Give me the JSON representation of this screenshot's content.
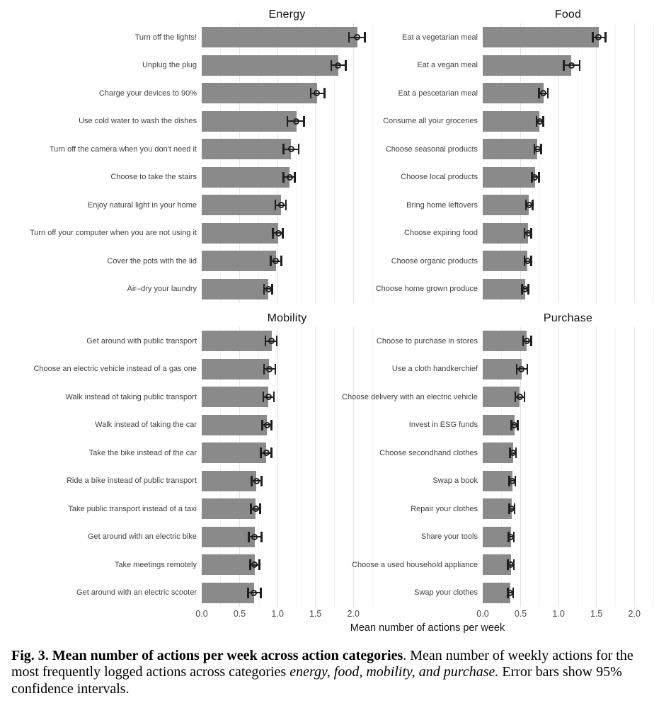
{
  "chart_data": {
    "type": "bar",
    "orientation": "horizontal",
    "facet_layout": "2x2",
    "title": "",
    "xlabel": "Mean number of actions per week",
    "ylabel": "",
    "xlim": [
      0,
      2.25
    ],
    "x_major_ticks": [
      0,
      0.5,
      1.0,
      1.5,
      2.0
    ],
    "x_tick_labels": [
      "0.0",
      "0.5",
      "1.0",
      "1.5",
      "2.0"
    ],
    "x_minor_gridlines": [
      0.25,
      0.75,
      1.25,
      1.75,
      2.25
    ],
    "grid": true,
    "legend": "none",
    "error_bars": "95% confidence intervals",
    "bar_color": "#8a8a8a",
    "errorbar_color": "#1f1f1f",
    "panels": [
      {
        "title": "Energy",
        "items": [
          {
            "label": "Turn off the lights!",
            "mean": 2.05,
            "ci_low": 1.94,
            "ci_high": 2.15
          },
          {
            "label": "Unplug the plug",
            "mean": 1.8,
            "ci_low": 1.71,
            "ci_high": 1.9
          },
          {
            "label": "Charge your devices to 90%",
            "mean": 1.52,
            "ci_low": 1.44,
            "ci_high": 1.62
          },
          {
            "label": "Use cold water to wash the dishes",
            "mean": 1.25,
            "ci_low": 1.13,
            "ci_high": 1.35
          },
          {
            "label": "Turn off the camera when you don't need it",
            "mean": 1.18,
            "ci_low": 1.08,
            "ci_high": 1.28
          },
          {
            "label": "Choose to take the stairs",
            "mean": 1.16,
            "ci_low": 1.08,
            "ci_high": 1.23
          },
          {
            "label": "Enjoy natural light in your home",
            "mean": 1.05,
            "ci_low": 0.97,
            "ci_high": 1.11
          },
          {
            "label": "Turn off your computer when you are not using it",
            "mean": 1.01,
            "ci_low": 0.94,
            "ci_high": 1.07
          },
          {
            "label": "Cover the pots with the lid",
            "mean": 0.98,
            "ci_low": 0.91,
            "ci_high": 1.05
          },
          {
            "label": "Air–dry your laundry",
            "mean": 0.88,
            "ci_low": 0.82,
            "ci_high": 0.93
          }
        ]
      },
      {
        "title": "Food",
        "items": [
          {
            "label": "Eat a vegetarian meal",
            "mean": 1.53,
            "ci_low": 1.45,
            "ci_high": 1.62
          },
          {
            "label": "Eat a vegan meal",
            "mean": 1.17,
            "ci_low": 1.07,
            "ci_high": 1.28
          },
          {
            "label": "Eat a pescetarian meal",
            "mean": 0.8,
            "ci_low": 0.74,
            "ci_high": 0.86
          },
          {
            "label": "Consume all your groceries",
            "mean": 0.75,
            "ci_low": 0.71,
            "ci_high": 0.8
          },
          {
            "label": "Choose seasonal products",
            "mean": 0.72,
            "ci_low": 0.68,
            "ci_high": 0.77
          },
          {
            "label": "Choose local products",
            "mean": 0.69,
            "ci_low": 0.65,
            "ci_high": 0.74
          },
          {
            "label": "Bring home leftovers",
            "mean": 0.61,
            "ci_low": 0.57,
            "ci_high": 0.66
          },
          {
            "label": "Choose expiring food",
            "mean": 0.6,
            "ci_low": 0.55,
            "ci_high": 0.64
          },
          {
            "label": "Choose organic products",
            "mean": 0.59,
            "ci_low": 0.55,
            "ci_high": 0.64
          },
          {
            "label": "Choose home grown produce",
            "mean": 0.56,
            "ci_low": 0.52,
            "ci_high": 0.6
          }
        ]
      },
      {
        "title": "Mobility",
        "items": [
          {
            "label": "Get around with public transport",
            "mean": 0.92,
            "ci_low": 0.84,
            "ci_high": 0.99
          },
          {
            "label": "Choose an electric vehicle instead of a gas one",
            "mean": 0.89,
            "ci_low": 0.82,
            "ci_high": 0.97
          },
          {
            "label": "Walk instead of taking public transport",
            "mean": 0.88,
            "ci_low": 0.81,
            "ci_high": 0.95
          },
          {
            "label": "Walk instead of taking the car",
            "mean": 0.86,
            "ci_low": 0.8,
            "ci_high": 0.92
          },
          {
            "label": "Take the bike instead of the car",
            "mean": 0.85,
            "ci_low": 0.78,
            "ci_high": 0.92
          },
          {
            "label": "Ride a bike instead of public transport",
            "mean": 0.72,
            "ci_low": 0.66,
            "ci_high": 0.79
          },
          {
            "label": "Take public transport instead of a taxi",
            "mean": 0.71,
            "ci_low": 0.65,
            "ci_high": 0.77
          },
          {
            "label": "Get around with an electric bike",
            "mean": 0.7,
            "ci_low": 0.62,
            "ci_high": 0.79
          },
          {
            "label": "Take meetings remotely",
            "mean": 0.7,
            "ci_low": 0.64,
            "ci_high": 0.76
          },
          {
            "label": "Get around with an electric scooter",
            "mean": 0.69,
            "ci_low": 0.61,
            "ci_high": 0.78
          }
        ]
      },
      {
        "title": "Purchase",
        "items": [
          {
            "label": "Choose to purchase in stores",
            "mean": 0.58,
            "ci_low": 0.53,
            "ci_high": 0.64
          },
          {
            "label": "Use a cloth handkerchief",
            "mean": 0.51,
            "ci_low": 0.45,
            "ci_high": 0.59
          },
          {
            "label": "Choose delivery with an electric vehicle",
            "mean": 0.49,
            "ci_low": 0.43,
            "ci_high": 0.55
          },
          {
            "label": "Invest in ESG funds",
            "mean": 0.42,
            "ci_low": 0.38,
            "ci_high": 0.46
          },
          {
            "label": "Choose secondhand clothes",
            "mean": 0.4,
            "ci_low": 0.36,
            "ci_high": 0.44
          },
          {
            "label": "Swap a book",
            "mean": 0.39,
            "ci_low": 0.35,
            "ci_high": 0.43
          },
          {
            "label": "Repair your clothes",
            "mean": 0.38,
            "ci_low": 0.35,
            "ci_high": 0.42
          },
          {
            "label": "Share your tools",
            "mean": 0.37,
            "ci_low": 0.34,
            "ci_high": 0.41
          },
          {
            "label": "Choose a used household appliance",
            "mean": 0.37,
            "ci_low": 0.33,
            "ci_high": 0.41
          },
          {
            "label": "Swap your clothes",
            "mean": 0.36,
            "ci_low": 0.33,
            "ci_high": 0.4
          }
        ]
      }
    ]
  },
  "caption": {
    "segments": [
      {
        "text": "Fig. 3. Mean number of actions per week across action categories",
        "style": "bold"
      },
      {
        "text": ". Mean number of weekly actions for the most frequently logged actions across categories ",
        "style": "normal"
      },
      {
        "text": "energy, food, mobility, and purchase.",
        "style": "italic"
      },
      {
        "text": " Error bars show 95% confidence intervals.",
        "style": "normal"
      }
    ]
  }
}
